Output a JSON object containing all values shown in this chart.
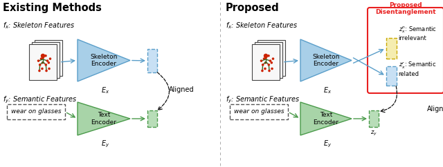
{
  "fig_width": 6.4,
  "fig_height": 2.42,
  "dpi": 100,
  "title_left": "Existing Methods",
  "title_right": "Proposed",
  "title_disentangle": "Proposed\nDisentanglement",
  "label_fx": "$f_x$: Skeleton Features",
  "label_fy": "$f_y$: Semantic Features",
  "label_text_box": "wear on glasses",
  "label_skeleton_encoder": "Skeleton\nEncoder",
  "label_text_encoder": "Text\nEncoder",
  "label_Ex": "$E_x$",
  "label_Ey": "$E_y$",
  "label_aligned": "Aligned",
  "label_zx_n": "$z_x^n$: Semantic\nirrelevant",
  "label_zx_r": "$z_x^r$: Semantic\nrelated",
  "label_zy": "$z_y$",
  "blue_tri_face": "#a8cfe8",
  "blue_tri_edge": "#5a9ec9",
  "green_tri_face": "#a8d4a8",
  "green_tri_edge": "#4a9a4a",
  "blue_box_face": "#c8e0f4",
  "blue_box_edge": "#5a9ec9",
  "green_box_face": "#b8ddb8",
  "green_box_edge": "#4a9a4a",
  "yellow_box_face": "#f5edb0",
  "yellow_box_edge": "#c8a800",
  "red_border": "#e82020",
  "text_color": "#111111",
  "skel_dot_color": "#cc2200",
  "skel_line_color": "#336622",
  "divider_color": "#aaaaaa",
  "bg_color": "#ffffff",
  "arrow_color": "#111111",
  "note_fontsize": 6.5,
  "title_fontsize": 10.5,
  "label_fontsize": 7.0,
  "encoder_fontsize": 6.5,
  "sub_fontsize": 6.0
}
